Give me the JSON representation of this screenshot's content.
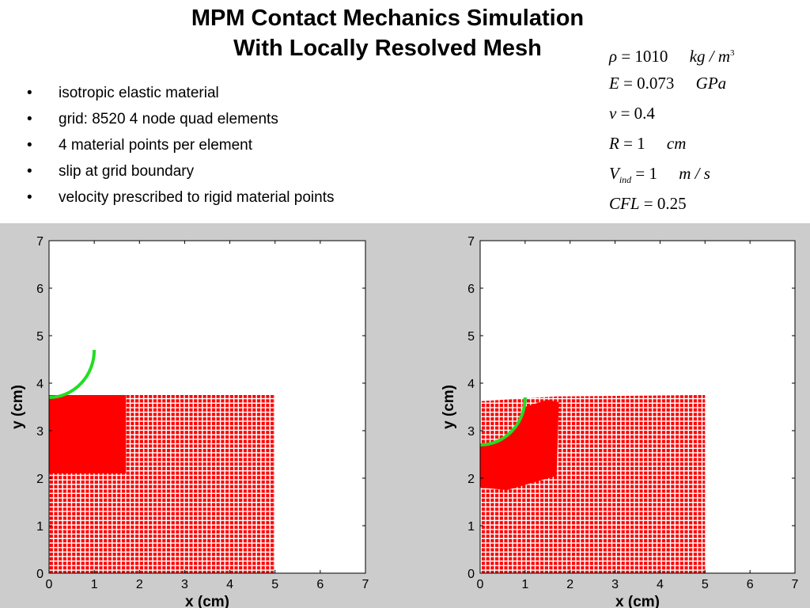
{
  "title": {
    "line1": "MPM Contact Mechanics Simulation",
    "line2": "With Locally Resolved Mesh"
  },
  "bullets": [
    "isotropic elastic material",
    "grid: 8520 4 node quad elements",
    "4 material points per element",
    "slip at grid boundary",
    "velocity prescribed to rigid material points"
  ],
  "params": {
    "rho": {
      "symbol": "ρ",
      "eq": "= 1010",
      "unit": "kg / m",
      "unit_sup": "3"
    },
    "E": {
      "symbol": "E",
      "eq": "= 0.073",
      "unit": "GPa"
    },
    "nu": {
      "symbol": "ν",
      "eq": "= 0.4"
    },
    "R": {
      "symbol": "R",
      "eq": "= 1",
      "unit": "cm"
    },
    "Vind": {
      "symbol": "V",
      "sub": "ind",
      "eq": "= 1",
      "unit": "m / s"
    },
    "CFL": {
      "symbol": "CFL",
      "eq": "= 0.25"
    }
  },
  "colors": {
    "material": "#ff0000",
    "indenter": "#22dd22",
    "panel_bg": "#cccccc"
  },
  "chart_data": [
    {
      "type": "scatter",
      "xlabel": "x (cm)",
      "ylabel": "y (cm)",
      "xlim": [
        0,
        7
      ],
      "ylim": [
        0,
        7
      ],
      "xticks": [
        0,
        1,
        2,
        3,
        4,
        5,
        6,
        7
      ],
      "yticks": [
        0,
        1,
        2,
        3,
        4,
        5,
        6,
        7
      ],
      "grid": false,
      "material_block": {
        "x": [
          0,
          5
        ],
        "y": [
          0,
          3.75
        ]
      },
      "refined_region": {
        "x": [
          0,
          1.7
        ],
        "y": [
          2.1,
          3.75
        ]
      },
      "indenter_arc": {
        "center": [
          0,
          4.7
        ],
        "radius": 1
      }
    },
    {
      "type": "scatter",
      "xlabel": "x (cm)",
      "ylabel": "y (cm)",
      "xlim": [
        0,
        7
      ],
      "ylim": [
        0,
        7
      ],
      "xticks": [
        0,
        1,
        2,
        3,
        4,
        5,
        6,
        7
      ],
      "yticks": [
        0,
        1,
        2,
        3,
        4,
        5,
        6,
        7
      ],
      "grid": false,
      "material_block": {
        "x": [
          0,
          5
        ],
        "y": [
          0,
          3.75
        ]
      },
      "refined_region": {
        "x": [
          0,
          1.7
        ],
        "y": [
          1.8,
          3.65
        ]
      },
      "indenter_arc": {
        "center": [
          0,
          3.7
        ],
        "radius": 1
      }
    }
  ]
}
